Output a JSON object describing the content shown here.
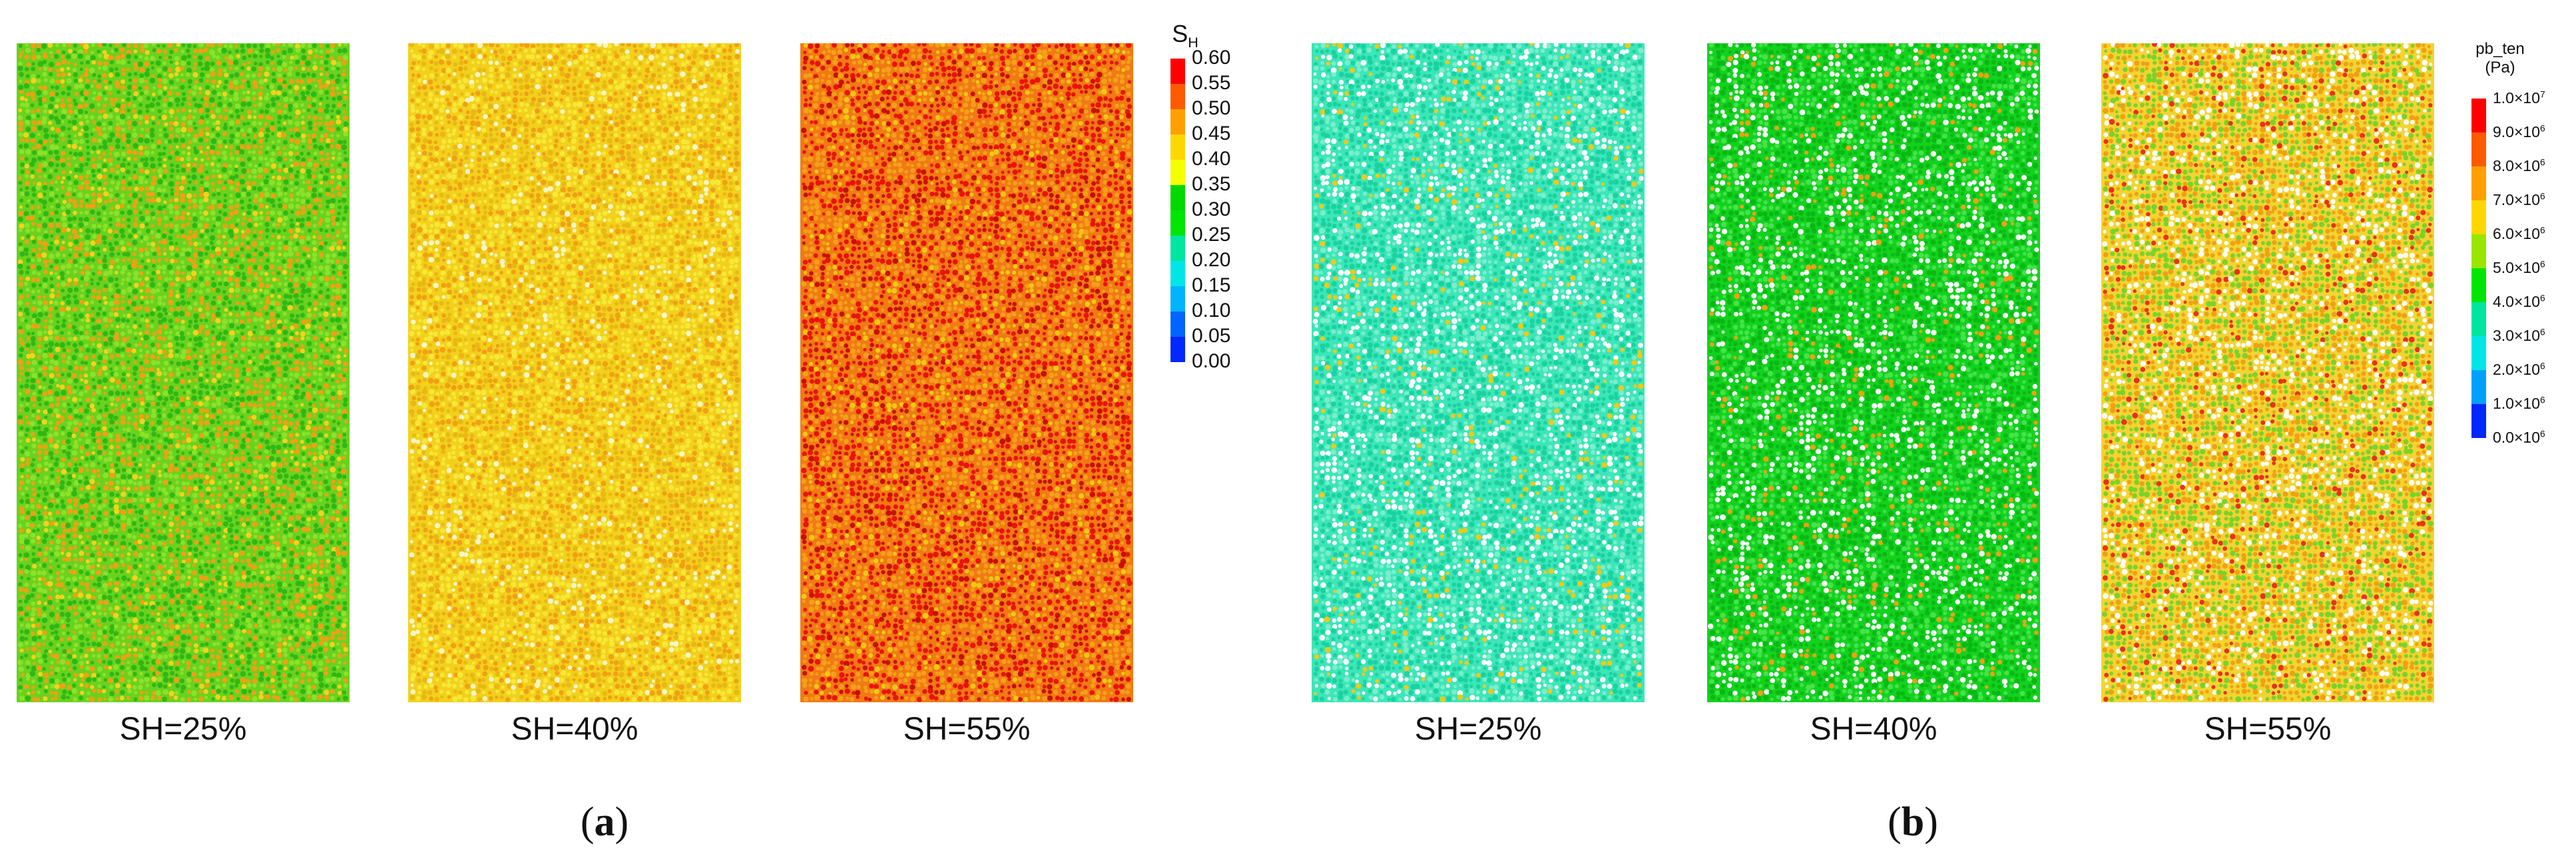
{
  "panels": [
    {
      "caption": "SH=25%",
      "base": "#6ad21e",
      "colors": [
        "#f0a014",
        "#f5d21e",
        "#2fb814",
        "#8ce22a"
      ],
      "weights": [
        0.3,
        0.1,
        0.35,
        0.25
      ]
    },
    {
      "caption": "SH=40%",
      "base": "#f2d01c",
      "colors": [
        "#f0a014",
        "#f7e838",
        "#e8b814",
        "#f5f5c8"
      ],
      "weights": [
        0.3,
        0.35,
        0.25,
        0.1
      ]
    },
    {
      "caption": "SH=55%",
      "base": "#f07a14",
      "colors": [
        "#e8140a",
        "#f5a018",
        "#f0c814",
        "#c81000"
      ],
      "weights": [
        0.4,
        0.35,
        0.1,
        0.15
      ]
    },
    {
      "caption": "SH=25%",
      "base": "#3ce6b8",
      "colors": [
        "#ffffff",
        "#f5c814",
        "#1ad2a0",
        "#7aeecb"
      ],
      "weights": [
        0.25,
        0.08,
        0.4,
        0.27
      ]
    },
    {
      "caption": "SH=40%",
      "base": "#12d21e",
      "colors": [
        "#ffffff",
        "#f0a014",
        "#0ab814",
        "#46e24a"
      ],
      "weights": [
        0.25,
        0.07,
        0.4,
        0.28
      ]
    },
    {
      "caption": "SH=55%",
      "base": "#f2d432",
      "colors": [
        "#ffffff",
        "#e8321a",
        "#7ad22a",
        "#f0a014"
      ],
      "weights": [
        0.22,
        0.1,
        0.35,
        0.33
      ]
    }
  ],
  "sublabels": {
    "a": "a",
    "b": "b"
  },
  "legend_sh": {
    "title": "S",
    "title_sub": "H",
    "ticks": [
      "0.60",
      "0.55",
      "0.50",
      "0.45",
      "0.40",
      "0.35",
      "0.30",
      "0.25",
      "0.20",
      "0.15",
      "0.10",
      "0.05",
      "0.00"
    ],
    "colors": [
      "#ff0000",
      "#ff5a00",
      "#ffa000",
      "#ffd700",
      "#f5ff00",
      "#00d900",
      "#00e600",
      "#00e6a0",
      "#00e6e6",
      "#00b4ff",
      "#0064ff",
      "#0028ff"
    ]
  },
  "legend_pb": {
    "title_line1": "pb_ten",
    "title_line2": "(Pa)",
    "ticks": [
      {
        "mant": "1.0×10",
        "exp": "7"
      },
      {
        "mant": "9.0×10",
        "exp": "6"
      },
      {
        "mant": "8.0×10",
        "exp": "6"
      },
      {
        "mant": "7.0×10",
        "exp": "6"
      },
      {
        "mant": "6.0×10",
        "exp": "6"
      },
      {
        "mant": "5.0×10",
        "exp": "6"
      },
      {
        "mant": "4.0×10",
        "exp": "6"
      },
      {
        "mant": "3.0×10",
        "exp": "6"
      },
      {
        "mant": "2.0×10",
        "exp": "6"
      },
      {
        "mant": "1.0×10",
        "exp": "6"
      },
      {
        "mant": "0.0×10",
        "exp": "6"
      }
    ],
    "colors": [
      "#ff0000",
      "#ff5a00",
      "#ffa000",
      "#ffd700",
      "#9ae600",
      "#00e600",
      "#00e6a0",
      "#00e6e6",
      "#00a0ff",
      "#0028ff"
    ]
  }
}
